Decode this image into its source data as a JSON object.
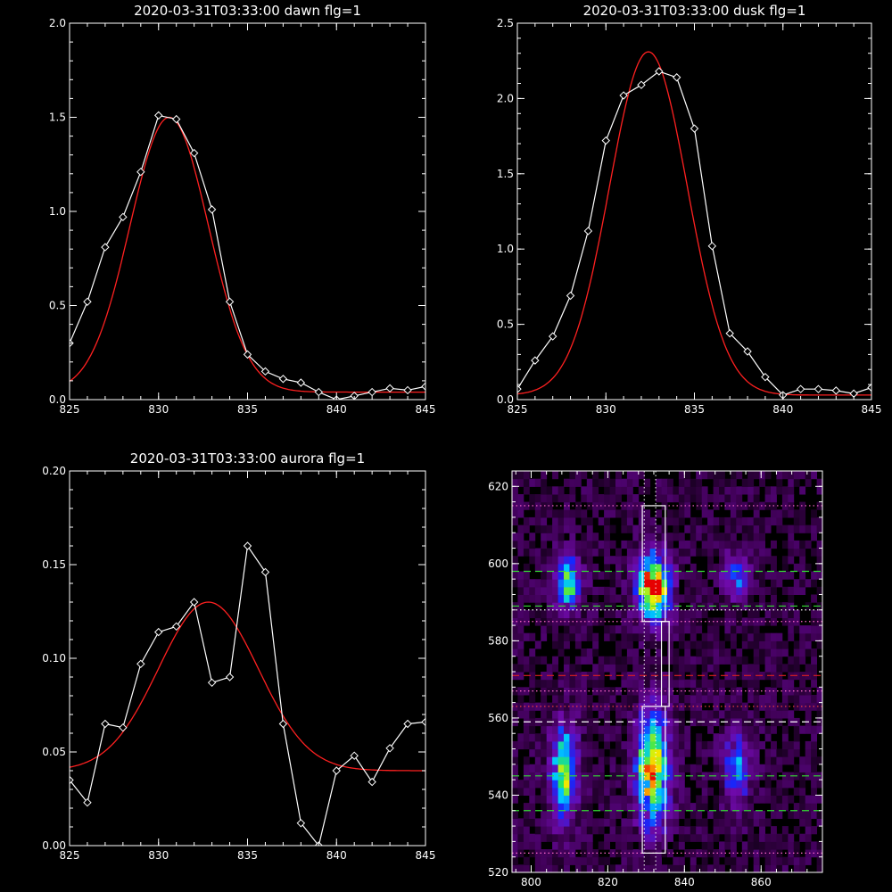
{
  "chart_data": [
    {
      "id": "dawn",
      "type": "line",
      "title": "2020-03-31T03:33:00 dawn flg=1",
      "xlim": [
        825,
        845
      ],
      "ylim": [
        0.0,
        2.0
      ],
      "xticks": [
        "825",
        "830",
        "835",
        "840",
        "845"
      ],
      "xtick_values": [
        825,
        830,
        835,
        840,
        845
      ],
      "yticks": [
        "0.0",
        "0.5",
        "1.0",
        "1.5",
        "2.0"
      ],
      "ytick_values": [
        0.0,
        0.5,
        1.0,
        1.5,
        2.0
      ],
      "x": [
        825,
        826,
        827,
        828,
        829,
        830,
        831,
        832,
        833,
        834,
        835,
        836,
        837,
        838,
        839,
        840,
        841,
        842,
        843,
        844,
        845
      ],
      "series": [
        {
          "kind": "measured",
          "color": "#ffffff",
          "markers": "diamond",
          "values": [
            0.3,
            0.52,
            0.81,
            0.97,
            1.21,
            1.51,
            1.49,
            1.31,
            1.01,
            0.52,
            0.24,
            0.15,
            0.11,
            0.09,
            0.04,
            0.0,
            0.02,
            0.04,
            0.06,
            0.05,
            0.07
          ]
        },
        {
          "kind": "fit",
          "color": "#ff2020",
          "model": "gaussian",
          "amplitude": 1.46,
          "center": 830.6,
          "sigma": 2.2,
          "offset": 0.04
        }
      ]
    },
    {
      "id": "dusk",
      "type": "line",
      "title": "2020-03-31T03:33:00 dusk flg=1",
      "xlim": [
        825,
        845
      ],
      "ylim": [
        0.0,
        2.5
      ],
      "xticks": [
        "825",
        "830",
        "835",
        "840",
        "845"
      ],
      "xtick_values": [
        825,
        830,
        835,
        840,
        845
      ],
      "yticks": [
        "0.0",
        "0.5",
        "1.0",
        "1.5",
        "2.0",
        "2.5"
      ],
      "ytick_values": [
        0.0,
        0.5,
        1.0,
        1.5,
        2.0,
        2.5
      ],
      "x": [
        825,
        826,
        827,
        828,
        829,
        830,
        831,
        832,
        833,
        834,
        835,
        836,
        837,
        838,
        839,
        840,
        841,
        842,
        843,
        844,
        845
      ],
      "series": [
        {
          "kind": "measured",
          "color": "#ffffff",
          "markers": "diamond",
          "values": [
            0.07,
            0.26,
            0.42,
            0.69,
            1.12,
            1.72,
            2.02,
            2.09,
            2.18,
            2.14,
            1.8,
            1.02,
            0.44,
            0.32,
            0.15,
            0.03,
            0.07,
            0.07,
            0.06,
            0.04,
            0.08
          ]
        },
        {
          "kind": "fit",
          "color": "#ff2020",
          "model": "gaussian",
          "amplitude": 2.28,
          "center": 832.4,
          "sigma": 2.2,
          "offset": 0.03
        }
      ]
    },
    {
      "id": "aurora",
      "type": "line",
      "title": "2020-03-31T03:33:00 aurora flg=1",
      "xlim": [
        825,
        845
      ],
      "ylim": [
        0.0,
        0.2
      ],
      "xticks": [
        "825",
        "830",
        "835",
        "840",
        "845"
      ],
      "xtick_values": [
        825,
        830,
        835,
        840,
        845
      ],
      "yticks": [
        "0.00",
        "0.05",
        "0.10",
        "0.15",
        "0.20"
      ],
      "ytick_values": [
        0.0,
        0.05,
        0.1,
        0.15,
        0.2
      ],
      "x": [
        825,
        826,
        827,
        828,
        829,
        830,
        831,
        832,
        833,
        834,
        835,
        836,
        837,
        838,
        839,
        840,
        841,
        842,
        843,
        844,
        845
      ],
      "series": [
        {
          "kind": "measured",
          "color": "#ffffff",
          "markers": "diamond",
          "values": [
            0.035,
            0.023,
            0.065,
            0.063,
            0.097,
            0.114,
            0.117,
            0.13,
            0.087,
            0.09,
            0.16,
            0.146,
            0.065,
            0.012,
            0.0,
            0.04,
            0.048,
            0.034,
            0.052,
            0.065,
            0.066
          ]
        },
        {
          "kind": "fit",
          "color": "#ff2020",
          "model": "gaussian",
          "amplitude": 0.09,
          "center": 832.8,
          "sigma": 2.8,
          "offset": 0.04
        }
      ]
    },
    {
      "id": "spectrogram",
      "type": "heatmap",
      "title": "",
      "xlim": [
        795,
        876
      ],
      "ylim": [
        520,
        624
      ],
      "xticks": [
        "800",
        "820",
        "840",
        "860"
      ],
      "xtick_values": [
        800,
        820,
        840,
        860
      ],
      "yticks": [
        "520",
        "540",
        "560",
        "580",
        "600",
        "620"
      ],
      "ytick_values": [
        520,
        540,
        560,
        580,
        600,
        620
      ],
      "colormap": "rainbow",
      "emission_blobs": [
        {
          "x": 809,
          "y": 594,
          "sx": 2.5,
          "sy": 5,
          "peak": 0.6
        },
        {
          "x": 831,
          "y": 593,
          "sx": 3,
          "sy": 6,
          "peak": 0.95
        },
        {
          "x": 853,
          "y": 596,
          "sx": 2.5,
          "sy": 4,
          "peak": 0.4
        },
        {
          "x": 808,
          "y": 545,
          "sx": 2.5,
          "sy": 9,
          "peak": 0.6
        },
        {
          "x": 831,
          "y": 546,
          "sx": 3,
          "sy": 10,
          "peak": 0.85
        },
        {
          "x": 853,
          "y": 546,
          "sx": 2.5,
          "sy": 7,
          "peak": 0.4
        }
      ],
      "boxes": [
        {
          "x0": 829,
          "x1": 835,
          "y0": 585,
          "y1": 615
        },
        {
          "x0": 829,
          "x1": 835,
          "y0": 525,
          "y1": 563
        }
      ],
      "connector_box": {
        "x0": 834,
        "x1": 836,
        "y0": 563,
        "y1": 585
      },
      "vertical_dotted_lines": [
        829.5,
        832.5
      ],
      "horizontal_lines": [
        {
          "y": 615,
          "color": "#ff66cc",
          "style": "dotted"
        },
        {
          "y": 598,
          "color": "#33dd33",
          "style": "dashed"
        },
        {
          "y": 589,
          "color": "#33dd33",
          "style": "dashed"
        },
        {
          "y": 588,
          "color": "#ffffff",
          "style": "dotted"
        },
        {
          "y": 585,
          "color": "#ff66cc",
          "style": "dotted"
        },
        {
          "y": 571,
          "color": "#e02020",
          "style": "dashed"
        },
        {
          "y": 567,
          "color": "#ff66cc",
          "style": "dotted"
        },
        {
          "y": 563,
          "color": "#ff4040",
          "style": "dotted"
        },
        {
          "y": 559,
          "color": "#ffffff",
          "style": "dashed"
        },
        {
          "y": 545,
          "color": "#33dd33",
          "style": "dashed"
        },
        {
          "y": 536,
          "color": "#33dd33",
          "style": "dashed"
        },
        {
          "y": 525,
          "color": "#ff66cc",
          "style": "dotted"
        }
      ]
    }
  ]
}
